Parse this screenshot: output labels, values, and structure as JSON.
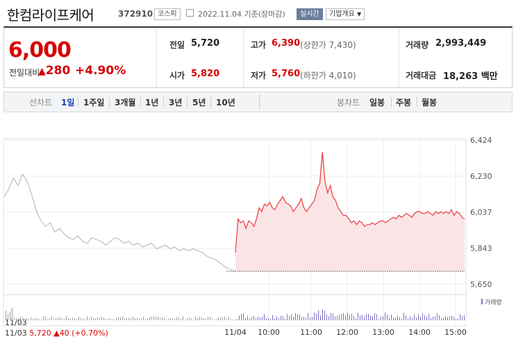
{
  "header": {
    "company": "한컴라이프케어",
    "code": "372910",
    "market": "코스피",
    "date": "2022.11.04",
    "basis": "기준(장마감)",
    "realtime": "실시간",
    "company_info": "기업개요"
  },
  "summary": {
    "price": "6,000",
    "change_label": "전일대비",
    "change_value": "280",
    "change_pct": "+4.90%",
    "prev_close_label": "전일",
    "prev_close": "5,720",
    "high_label": "고가",
    "high": "6,390",
    "upper_limit_label": "(상한가",
    "upper_limit": "7,430)",
    "volume_label": "거래량",
    "volume": "2,993,449",
    "open_label": "시가",
    "open": "5,820",
    "low_label": "저가",
    "low": "5,760",
    "lower_limit_label": "(하한가",
    "lower_limit": "4,010)",
    "amount_label": "거래대금",
    "amount": "18,263",
    "amount_unit": "백만"
  },
  "tabs": {
    "line_label": "선차트",
    "periods": [
      "1일",
      "1주일",
      "3개월",
      "1년",
      "3년",
      "5년",
      "10년"
    ],
    "candle_label": "봉차트",
    "candles": [
      "일봉",
      "주봉",
      "월봉"
    ]
  },
  "chart_data": {
    "type": "line",
    "yticks": [
      "6,424",
      "6,230",
      "6,037",
      "5,843",
      "5,650"
    ],
    "ylim": [
      5650,
      6424
    ],
    "xticks": [
      "11/04",
      "10:00",
      "11:00",
      "12:00",
      "13:00",
      "14:00",
      "15:00"
    ],
    "volume_label": "거래량",
    "prev_day": {
      "label": "11/03",
      "close": "5,720",
      "change": "▲40",
      "change_pct": "(+0.70%)",
      "values": [
        6120,
        6160,
        6220,
        6180,
        6240,
        6200,
        6130,
        6040,
        5990,
        5960,
        5980,
        5930,
        5950,
        5920,
        5900,
        5890,
        5910,
        5880,
        5870,
        5900,
        5890,
        5880,
        5860,
        5880,
        5900,
        5890,
        5870,
        5880,
        5860,
        5870,
        5850,
        5860,
        5870,
        5840,
        5850,
        5860,
        5840,
        5850,
        5830,
        5840,
        5830,
        5840,
        5830,
        5820,
        5800,
        5790,
        5780,
        5760,
        5740,
        5730,
        5720
      ]
    },
    "today": {
      "values": [
        5820,
        6000,
        5980,
        5990,
        5950,
        5990,
        5980,
        5960,
        6000,
        6060,
        6040,
        6080,
        6070,
        6090,
        6060,
        6050,
        6080,
        6100,
        6120,
        6090,
        6080,
        6070,
        6040,
        6060,
        6080,
        6110,
        6060,
        6040,
        6060,
        6080,
        6100,
        6160,
        6190,
        6200,
        6140,
        6180,
        6120,
        6100,
        6060,
        6040,
        6020,
        6020,
        6000,
        5980,
        5990,
        5970,
        5990,
        5980,
        5960,
        5970,
        5970,
        5980,
        5970,
        5980,
        5990,
        5990,
        5980,
        5990,
        6000,
        6010,
        6000,
        6020,
        6010,
        6020,
        6030,
        6020,
        6010,
        6030,
        6040,
        6040,
        6030,
        6030,
        6040,
        6030,
        6020,
        6040,
        6030,
        6040,
        6030,
        6040,
        6030,
        6050,
        6020,
        6040,
        6030,
        6010,
        6000
      ],
      "spike_value": 6360,
      "base": 5720
    }
  },
  "colors": {
    "accent_red": "#d60000",
    "line_red": "#e8474c",
    "fill_red": "#fbe4e6",
    "prev_gray": "#bdbdbd",
    "link_blue": "#1a3fb5"
  }
}
